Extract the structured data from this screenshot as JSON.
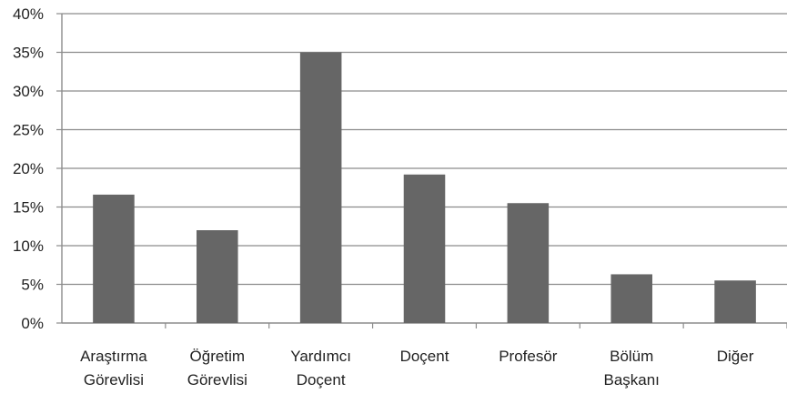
{
  "chart_data": {
    "type": "bar",
    "title": "",
    "xlabel": "",
    "ylabel": "",
    "categories": [
      [
        "Araştırma",
        "Görevlisi"
      ],
      [
        "Öğretim",
        "Görevlisi"
      ],
      [
        "Yardımcı",
        "Doçent"
      ],
      [
        "Doçent"
      ],
      [
        "Profesör"
      ],
      [
        "Bölüm",
        "Başkanı"
      ],
      [
        "Diğer"
      ]
    ],
    "values": [
      16.6,
      12.0,
      35.0,
      19.2,
      15.5,
      6.3,
      5.5
    ],
    "ylim": [
      0,
      40
    ],
    "yticks": [
      "0%",
      "5%",
      "10%",
      "15%",
      "20%",
      "25%",
      "30%",
      "35%",
      "40%"
    ],
    "ytick_values": [
      0,
      5,
      10,
      15,
      20,
      25,
      30,
      35,
      40
    ],
    "grid": true,
    "legend": false,
    "colors": {
      "bar": "#666666",
      "grid": "#8c8c8c",
      "axis": "#8c8c8c",
      "text": "#222222"
    }
  }
}
